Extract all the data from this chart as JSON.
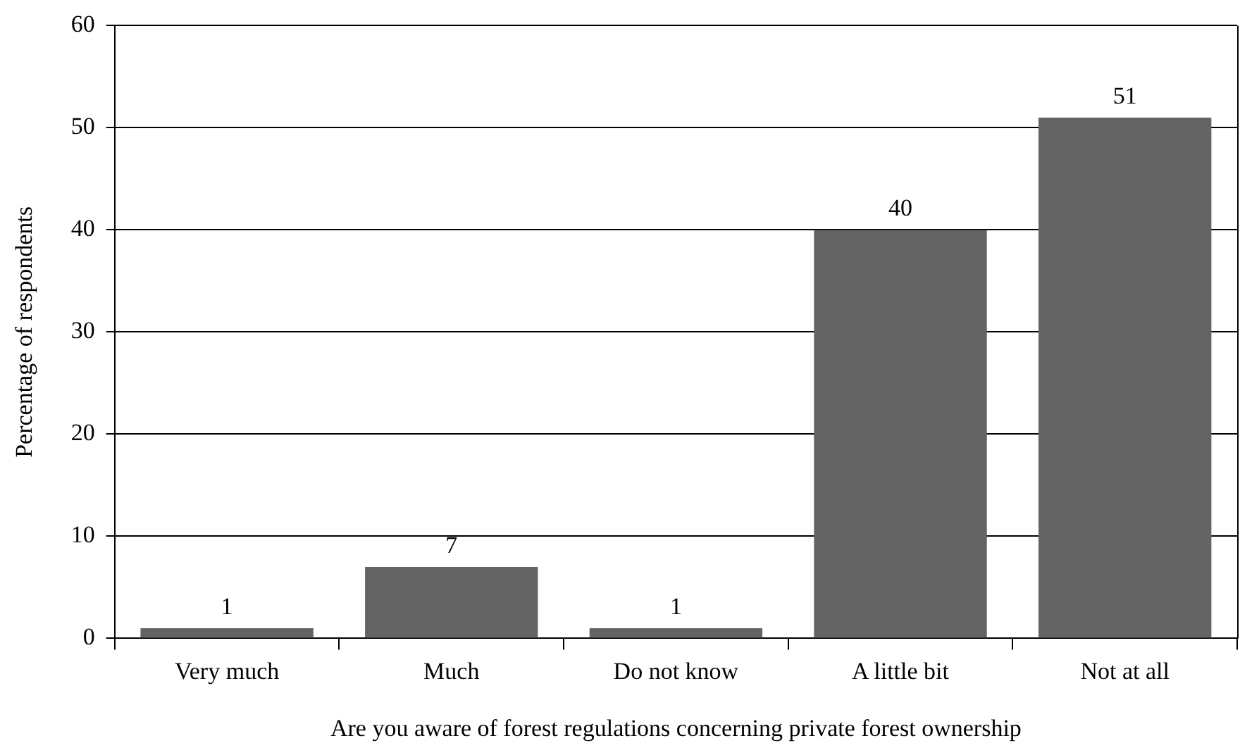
{
  "chart_data": {
    "type": "bar",
    "xlabel": "Are you aware of forest regulations concerning private forest ownership",
    "ylabel": "Percentage of respondents",
    "categories": [
      "Very much",
      "Much",
      "Do not know",
      "A little bit",
      "Not at all"
    ],
    "values": [
      1,
      7,
      1,
      40,
      51
    ],
    "color": "#636363",
    "ylim": [
      0,
      60
    ],
    "yticks": [
      0,
      10,
      20,
      30,
      40,
      50,
      60
    ],
    "grid": "y",
    "data_labels": true
  }
}
